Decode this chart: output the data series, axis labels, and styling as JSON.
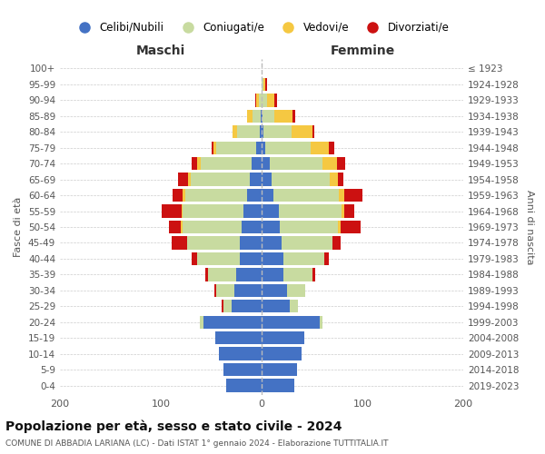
{
  "age_groups": [
    "0-4",
    "5-9",
    "10-14",
    "15-19",
    "20-24",
    "25-29",
    "30-34",
    "35-39",
    "40-44",
    "45-49",
    "50-54",
    "55-59",
    "60-64",
    "65-69",
    "70-74",
    "75-79",
    "80-84",
    "85-89",
    "90-94",
    "95-99",
    "100+"
  ],
  "birth_years": [
    "2019-2023",
    "2014-2018",
    "2009-2013",
    "2004-2008",
    "1999-2003",
    "1994-1998",
    "1989-1993",
    "1984-1988",
    "1979-1983",
    "1974-1978",
    "1969-1973",
    "1964-1968",
    "1959-1963",
    "1954-1958",
    "1949-1953",
    "1944-1948",
    "1939-1943",
    "1934-1938",
    "1929-1933",
    "1924-1928",
    "≤ 1923"
  ],
  "maschi": {
    "celibi": [
      35,
      38,
      42,
      46,
      58,
      30,
      27,
      25,
      22,
      22,
      20,
      18,
      14,
      12,
      10,
      5,
      2,
      1,
      0,
      0,
      0
    ],
    "coniugati": [
      0,
      0,
      0,
      0,
      3,
      8,
      18,
      28,
      42,
      52,
      58,
      60,
      62,
      58,
      50,
      40,
      22,
      8,
      3,
      0,
      0
    ],
    "vedovi": [
      0,
      0,
      0,
      0,
      0,
      0,
      0,
      0,
      0,
      0,
      2,
      1,
      2,
      3,
      4,
      3,
      5,
      5,
      2,
      0,
      0
    ],
    "divorziati": [
      0,
      0,
      0,
      0,
      0,
      2,
      2,
      3,
      5,
      15,
      12,
      20,
      10,
      10,
      5,
      2,
      0,
      0,
      1,
      0,
      0
    ]
  },
  "femmine": {
    "nubili": [
      32,
      35,
      40,
      42,
      58,
      28,
      25,
      22,
      22,
      20,
      18,
      17,
      12,
      10,
      8,
      4,
      2,
      1,
      0,
      0,
      0
    ],
    "coniugate": [
      0,
      0,
      0,
      0,
      2,
      8,
      18,
      28,
      40,
      50,
      58,
      62,
      65,
      58,
      52,
      45,
      28,
      12,
      5,
      2,
      0
    ],
    "vedove": [
      0,
      0,
      0,
      0,
      0,
      0,
      0,
      0,
      0,
      0,
      2,
      3,
      5,
      8,
      15,
      18,
      20,
      18,
      8,
      2,
      0
    ],
    "divorziate": [
      0,
      0,
      0,
      0,
      0,
      0,
      0,
      3,
      5,
      8,
      20,
      10,
      18,
      5,
      8,
      5,
      2,
      2,
      2,
      1,
      0
    ]
  },
  "colors": {
    "celibi": "#4472C4",
    "coniugati": "#C8DBA0",
    "vedovi": "#F5C842",
    "divorziati": "#CC1111"
  },
  "legend_labels": [
    "Celibi/Nubili",
    "Coniugati/e",
    "Vedovi/e",
    "Divorziati/e"
  ],
  "xlim": 200,
  "title": "Popolazione per età, sesso e stato civile - 2024",
  "subtitle": "COMUNE DI ABBADIA LARIANA (LC) - Dati ISTAT 1° gennaio 2024 - Elaborazione TUTTITALIA.IT",
  "ylabel_left": "Fasce di età",
  "ylabel_right": "Anni di nascita",
  "xlabel_maschi": "Maschi",
  "xlabel_femmine": "Femmine",
  "bg_color": "#f8f8f8"
}
